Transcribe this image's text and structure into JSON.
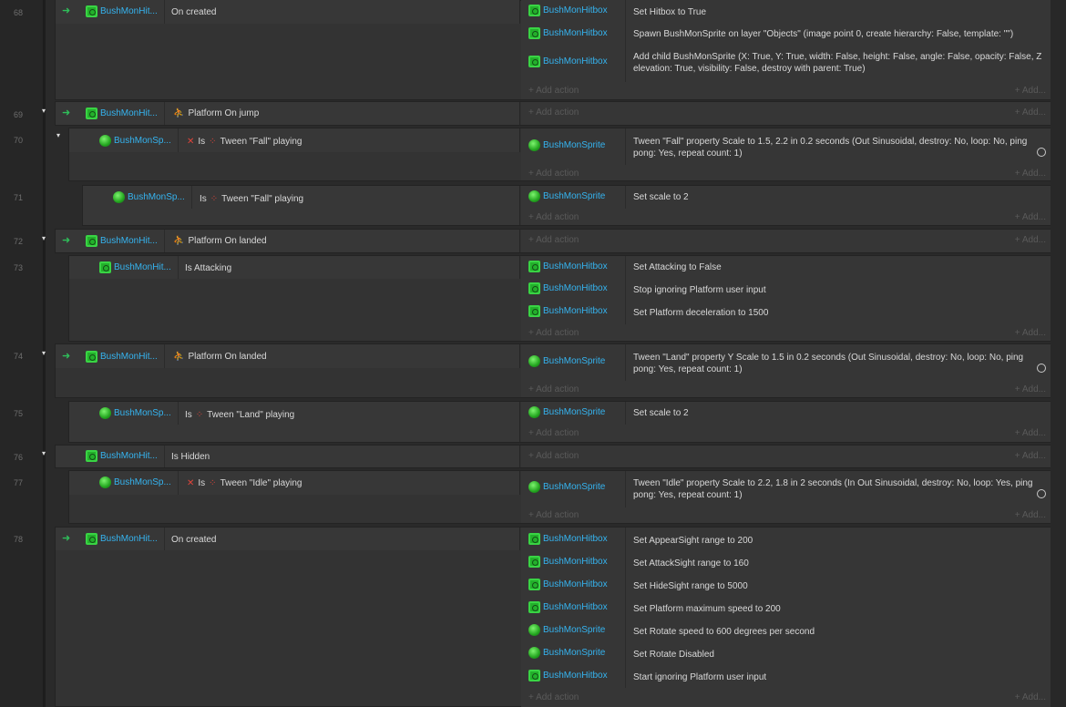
{
  "rows": [
    {
      "num": "68",
      "objects": [
        "BushMonHit...",
        "BushMonHit..."
      ],
      "conds": [
        "On created"
      ]
    },
    {
      "num": "69",
      "conds": [
        "Platform On jump"
      ]
    },
    {
      "num": "70",
      "conds": [
        "Is",
        "Tween \"Fall\" playing"
      ]
    },
    {
      "num": "71",
      "conds": [
        "Is",
        "Tween \"Fall\" playing"
      ]
    },
    {
      "num": "72",
      "conds": [
        "Platform On landed"
      ]
    },
    {
      "num": "73",
      "conds": [
        "Is Attacking"
      ]
    },
    {
      "num": "74",
      "conds": [
        "Platform On landed"
      ]
    },
    {
      "num": "75",
      "conds": [
        "Is",
        "Tween \"Land\" playing"
      ]
    },
    {
      "num": "76",
      "conds": [
        "Is Hidden"
      ]
    },
    {
      "num": "77",
      "conds": [
        "Is",
        "Tween \"Idle\" playing"
      ]
    },
    {
      "num": "78",
      "conds": [
        "On created"
      ]
    }
  ],
  "labels": {
    "bushhit": "BushMonHit...",
    "bushsp": "BushMonSp...",
    "hitbox": "BushMonHitbox",
    "sprite": "BushMonSprite",
    "add_action": "+ Add action",
    "add_small": "+ Add...",
    "on_created": "On created",
    "platform_on_jump": "Platform On jump",
    "platform_on_landed": "Platform On landed",
    "is": "Is",
    "tween_fall": "Tween \"Fall\" playing",
    "tween_land": "Tween \"Land\" playing",
    "tween_idle": "Tween \"Idle\" playing",
    "is_attacking": "Is Attacking",
    "is_hidden": "Is Hidden"
  },
  "actions": {
    "a68_1": "Set Hitbox to True",
    "a68_2": "Spawn BushMonSprite on layer \"Objects\" (image point 0, create hierarchy: False, template: \"\")",
    "a68_3": "Add child BushMonSprite (X: True, Y: True, width: False, height: False, angle: False, opacity: False, Z elevation: True, visibility: False, destroy with parent: True)",
    "a70_1": "Tween \"Fall\" property Scale to 1.5, 2.2 in 0.2 seconds (Out Sinusoidal, destroy: No, loop: No, ping pong: Yes, repeat count: 1)",
    "a71_1": "Set scale to 2",
    "a73_1": "Set Attacking to False",
    "a73_2": "Stop ignoring Platform user input",
    "a73_3": "Set Platform deceleration to 1500",
    "a74_1": "Tween \"Land\" property Y Scale to 1.5 in 0.2 seconds (Out Sinusoidal, destroy: No, loop: No, ping pong: Yes, repeat count: 1)",
    "a75_1": "Set scale to 2",
    "a77_1": "Tween \"Idle\" property Scale to 2.2, 1.8 in 2 seconds (In Out Sinusoidal, destroy: No, loop: Yes, ping pong: Yes, repeat count: 1)",
    "a78_1": "Set AppearSight range to 200",
    "a78_2": "Set AttackSight range to 160",
    "a78_3": "Set HideSight range to 5000",
    "a78_4": "Set Platform maximum speed to 200",
    "a78_5": "Set Rotate speed to 600 degrees per second",
    "a78_6": "Set Rotate Disabled",
    "a78_7": "Start ignoring Platform user input"
  },
  "icons": {
    "hitbox": "hitbox-icon",
    "sprite": "sprite-icon",
    "platform": "platform-behavior-icon",
    "tween": "tween-behavior-icon",
    "invert": "invert-x-icon",
    "los": "line-of-sight-icon",
    "rotate": "rotate-behavior-icon",
    "trigger": "trigger-arrow-icon",
    "timer": "clock-icon"
  },
  "colors": {
    "object_name": "#35b4f0",
    "trigger": "#2fbf5a",
    "invert": "#e0443a",
    "background": "#2a2a2a"
  }
}
